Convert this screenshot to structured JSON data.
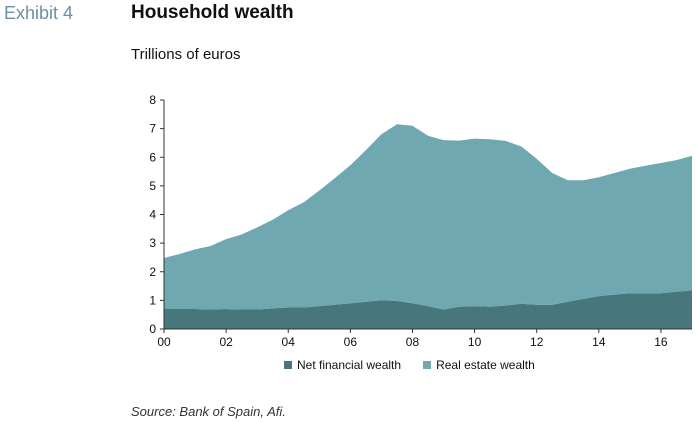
{
  "header": {
    "exhibit": "Exhibit 4",
    "title": "Household wealth",
    "subtitle": "Trillions of euros"
  },
  "source": "Source: Bank of Spain, Afi.",
  "colors": {
    "net_financial": "#47777c",
    "real_estate": "#6fa8b0",
    "axis": "#333333",
    "exhibit_label": "#6d8fa3"
  },
  "chart_data": {
    "type": "area",
    "stacked": true,
    "title": "Household wealth",
    "ylabel": "Trillions of euros",
    "ylim": [
      0,
      8
    ],
    "xlim": [
      2000,
      2017
    ],
    "grid": false,
    "legend_position": "bottom",
    "x_ticks": [
      {
        "value": 2000,
        "label": "00"
      },
      {
        "value": 2002,
        "label": "02"
      },
      {
        "value": 2004,
        "label": "04"
      },
      {
        "value": 2006,
        "label": "06"
      },
      {
        "value": 2008,
        "label": "08"
      },
      {
        "value": 2010,
        "label": "10"
      },
      {
        "value": 2012,
        "label": "12"
      },
      {
        "value": 2014,
        "label": "14"
      },
      {
        "value": 2016,
        "label": "16"
      }
    ],
    "y_ticks": [
      0,
      1,
      2,
      3,
      4,
      5,
      6,
      7,
      8
    ],
    "x": [
      2000.0,
      2000.5,
      2001.0,
      2001.5,
      2002.0,
      2002.5,
      2003.0,
      2003.5,
      2004.0,
      2004.5,
      2005.0,
      2005.5,
      2006.0,
      2006.5,
      2007.0,
      2007.5,
      2008.0,
      2008.5,
      2009.0,
      2009.5,
      2010.0,
      2010.5,
      2011.0,
      2011.5,
      2012.0,
      2012.5,
      2013.0,
      2013.5,
      2014.0,
      2014.5,
      2015.0,
      2015.5,
      2016.0,
      2016.5,
      2017.0
    ],
    "series": [
      {
        "name": "Net financial wealth",
        "values": [
          0.7,
          0.7,
          0.7,
          0.68,
          0.7,
          0.68,
          0.68,
          0.72,
          0.75,
          0.75,
          0.8,
          0.85,
          0.9,
          0.95,
          1.0,
          0.98,
          0.9,
          0.8,
          0.68,
          0.78,
          0.8,
          0.78,
          0.82,
          0.88,
          0.85,
          0.85,
          0.95,
          1.05,
          1.15,
          1.2,
          1.25,
          1.25,
          1.25,
          1.3,
          1.35
        ]
      },
      {
        "name": "Real estate wealth",
        "values": [
          1.78,
          1.92,
          2.08,
          2.22,
          2.44,
          2.62,
          2.87,
          3.1,
          3.4,
          3.68,
          4.04,
          4.42,
          4.82,
          5.3,
          5.8,
          6.17,
          6.2,
          5.95,
          5.92,
          5.8,
          5.85,
          5.85,
          5.75,
          5.5,
          5.1,
          4.6,
          4.25,
          4.15,
          4.15,
          4.25,
          4.35,
          4.45,
          4.55,
          4.6,
          4.7
        ]
      }
    ]
  }
}
